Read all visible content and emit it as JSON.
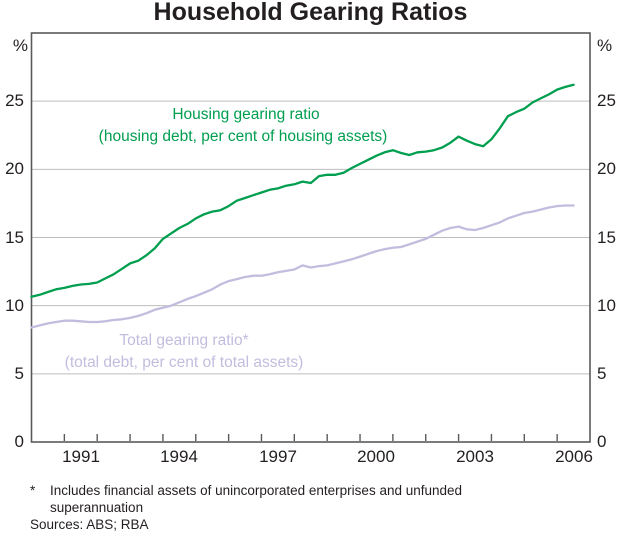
{
  "title": "Household Gearing Ratios",
  "axis": {
    "unit_left": "%",
    "unit_right": "%"
  },
  "annotations": {
    "housing_label": "Housing gearing ratio",
    "housing_sublabel": "(housing debt, per cent of housing assets)",
    "total_label": "Total gearing ratio*",
    "total_sublabel": "(total debt, per cent of total assets)"
  },
  "footnote": {
    "marker": "*",
    "line1": "Includes financial assets of unincorporated enterprises and unfunded",
    "line2": "superannuation",
    "sources": "Sources: ABS; RBA"
  },
  "colors": {
    "housing_line": "#009E4F",
    "total_line": "#C2BDDE",
    "grid": "#BDBDBD",
    "frame": "#595A5C",
    "text": "#231F20"
  },
  "chart_data": {
    "type": "line",
    "title": "Household Gearing Ratios",
    "xlabel": "",
    "ylabel": "%",
    "xlim": [
      1990,
      2007
    ],
    "ylim": [
      0,
      30
    ],
    "yticks": [
      0,
      5,
      10,
      15,
      20,
      25
    ],
    "xticks": [
      1991,
      1992,
      1993,
      1994,
      1995,
      1996,
      1997,
      1998,
      1999,
      2000,
      2001,
      2002,
      2003,
      2004,
      2005,
      2006
    ],
    "xlabel_years": [
      1991,
      1994,
      1997,
      2000,
      2003,
      2006
    ],
    "grid": true,
    "legend_position": "inline-annotations",
    "x": [
      1990.0,
      1990.25,
      1990.5,
      1990.75,
      1991.0,
      1991.25,
      1991.5,
      1991.75,
      1992.0,
      1992.25,
      1992.5,
      1992.75,
      1993.0,
      1993.25,
      1993.5,
      1993.75,
      1994.0,
      1994.25,
      1994.5,
      1994.75,
      1995.0,
      1995.25,
      1995.5,
      1995.75,
      1996.0,
      1996.25,
      1996.5,
      1996.75,
      1997.0,
      1997.25,
      1997.5,
      1997.75,
      1998.0,
      1998.25,
      1998.5,
      1998.75,
      1999.0,
      1999.25,
      1999.5,
      1999.75,
      2000.0,
      2000.25,
      2000.5,
      2000.75,
      2001.0,
      2001.25,
      2001.5,
      2001.75,
      2002.0,
      2002.25,
      2002.5,
      2002.75,
      2003.0,
      2003.25,
      2003.5,
      2003.75,
      2004.0,
      2004.25,
      2004.5,
      2004.75,
      2005.0,
      2005.25,
      2005.5,
      2005.75,
      2006.0,
      2006.25,
      2006.5
    ],
    "series": [
      {
        "name": "Housing gearing ratio",
        "description": "(housing debt, per cent of housing assets)",
        "color": "#009E4F",
        "values": [
          10.65,
          10.8,
          11.0,
          11.2,
          11.3,
          11.45,
          11.55,
          11.6,
          11.7,
          12.0,
          12.3,
          12.7,
          13.1,
          13.3,
          13.7,
          14.2,
          14.9,
          15.3,
          15.7,
          16.0,
          16.4,
          16.7,
          16.9,
          17.0,
          17.3,
          17.7,
          17.9,
          18.1,
          18.3,
          18.5,
          18.6,
          18.8,
          18.9,
          19.1,
          19.0,
          19.5,
          19.6,
          19.6,
          19.75,
          20.1,
          20.4,
          20.7,
          21.0,
          21.25,
          21.4,
          21.2,
          21.05,
          21.25,
          21.3,
          21.4,
          21.6,
          21.95,
          22.4,
          22.1,
          21.85,
          21.7,
          22.2,
          23.0,
          23.9,
          24.2,
          24.45,
          24.9,
          25.2,
          25.5,
          25.85,
          26.05,
          26.2
        ]
      },
      {
        "name": "Total gearing ratio*",
        "description": "(total debt, per cent of total assets)",
        "color": "#C2BDDE",
        "values": [
          8.4,
          8.55,
          8.7,
          8.8,
          8.9,
          8.9,
          8.85,
          8.8,
          8.8,
          8.85,
          8.95,
          9.0,
          9.1,
          9.25,
          9.45,
          9.7,
          9.85,
          10.0,
          10.25,
          10.5,
          10.7,
          10.95,
          11.2,
          11.55,
          11.8,
          11.95,
          12.1,
          12.2,
          12.2,
          12.3,
          12.45,
          12.55,
          12.65,
          12.95,
          12.8,
          12.9,
          12.95,
          13.1,
          13.25,
          13.4,
          13.6,
          13.8,
          14.0,
          14.15,
          14.25,
          14.3,
          14.5,
          14.7,
          14.9,
          15.2,
          15.5,
          15.7,
          15.8,
          15.6,
          15.55,
          15.7,
          15.9,
          16.1,
          16.4,
          16.6,
          16.8,
          16.9,
          17.05,
          17.2,
          17.3,
          17.35,
          17.35
        ]
      }
    ]
  }
}
